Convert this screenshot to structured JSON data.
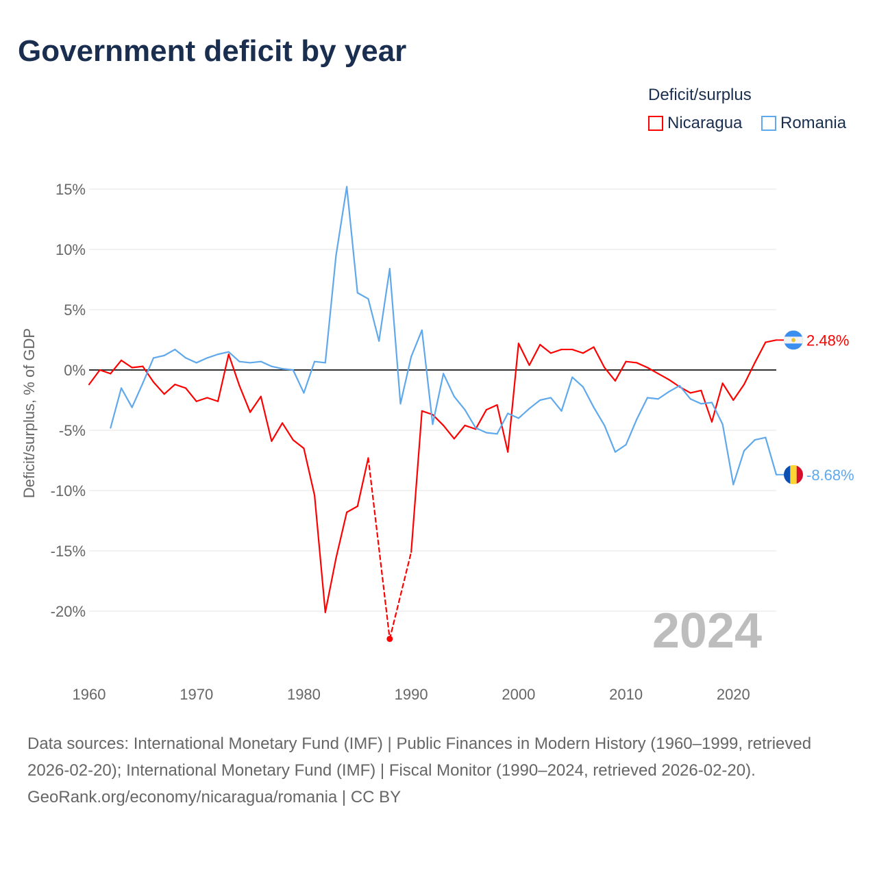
{
  "title": "Government deficit by year",
  "legend_title": "Deficit/surplus",
  "footer": {
    "sources": "Data sources: International Monetary Fund (IMF) | Public Finances in Modern History (1960–1999, retrieved 2026-02-20); International Monetary Fund (IMF) | Fiscal Monitor (1990–2024, retrieved 2026-02-20).",
    "link": "GeoRank.org/economy/nicaragua/romania | CC BY"
  },
  "chart_data": {
    "type": "line",
    "title": "Government deficit by year",
    "xlabel": "",
    "ylabel": "Deficit/surplus, % of GDP",
    "xlim": [
      1960,
      2024
    ],
    "ylim": [
      -25,
      15
    ],
    "x_ticks": [
      1960,
      1970,
      1980,
      1990,
      2000,
      2010,
      2020
    ],
    "x_tick_labels": [
      "1960",
      "1970",
      "1980",
      "1990",
      "2000",
      "2010",
      "2020"
    ],
    "y_ticks": [
      15,
      10,
      5,
      0,
      -5,
      -10,
      -15,
      -20
    ],
    "y_tick_labels": [
      "15%",
      "10%",
      "5%",
      "0%",
      "-5%",
      "-10%",
      "-15%",
      "-20%"
    ],
    "year_watermark": "2024",
    "legend_position": "top-right",
    "series": [
      {
        "name": "Nicaragua",
        "color": "#ff0000",
        "end_label": "2.48%",
        "flag": "nicaragua-flag",
        "start_year": 1960,
        "values": [
          -1.2,
          0,
          -0.3,
          0.8,
          0.2,
          0.3,
          -1.0,
          -2.0,
          -1.2,
          -1.5,
          -2.6,
          -2.3,
          -2.6,
          1.3,
          -1.3,
          -3.5,
          -2.2,
          -5.9,
          -4.4,
          -5.8,
          -6.5,
          -10.4,
          -20.1,
          -15.6,
          -11.8,
          -11.3,
          -7.3,
          null,
          -22.3,
          null,
          -15.1,
          -3.4,
          -3.7,
          -4.6,
          -5.7,
          -4.6,
          -4.9,
          -3.3,
          -2.9,
          -6.8,
          2.2,
          0.4,
          2.1,
          1.4,
          1.7,
          1.7,
          1.4,
          1.9,
          0.2,
          -0.9,
          0.7,
          0.6,
          0.2,
          -0.3,
          -0.8,
          -1.4,
          -1.9,
          -1.7,
          -4.3,
          -1.1,
          -2.5,
          -1.2,
          0.6,
          2.3,
          2.48
        ]
      },
      {
        "name": "Romania",
        "color": "#5fa8ec",
        "end_label": "-8.68%",
        "flag": "romania-flag",
        "start_year": 1962,
        "values": [
          -4.8,
          -1.5,
          -3.1,
          -1.1,
          1.0,
          1.2,
          1.7,
          1.0,
          0.6,
          1.0,
          1.3,
          1.5,
          0.7,
          0.6,
          0.7,
          0.3,
          0.1,
          0,
          -1.9,
          0.7,
          0.6,
          9.5,
          15.2,
          6.4,
          5.9,
          2.4,
          8.4,
          -2.8,
          1.1,
          3.3,
          -4.5,
          -0.3,
          -2.2,
          -3.3,
          -4.8,
          -5.2,
          -5.3,
          -3.6,
          -4.0,
          -3.2,
          -2.5,
          -2.3,
          -3.4,
          -0.6,
          -1.4,
          -3.1,
          -4.6,
          -6.8,
          -6.2,
          -4.1,
          -2.3,
          -2.4,
          -1.8,
          -1.3,
          -2.4,
          -2.8,
          -2.7,
          -4.5,
          -9.5,
          -6.7,
          -5.8,
          -5.6,
          -8.68
        ]
      }
    ]
  }
}
